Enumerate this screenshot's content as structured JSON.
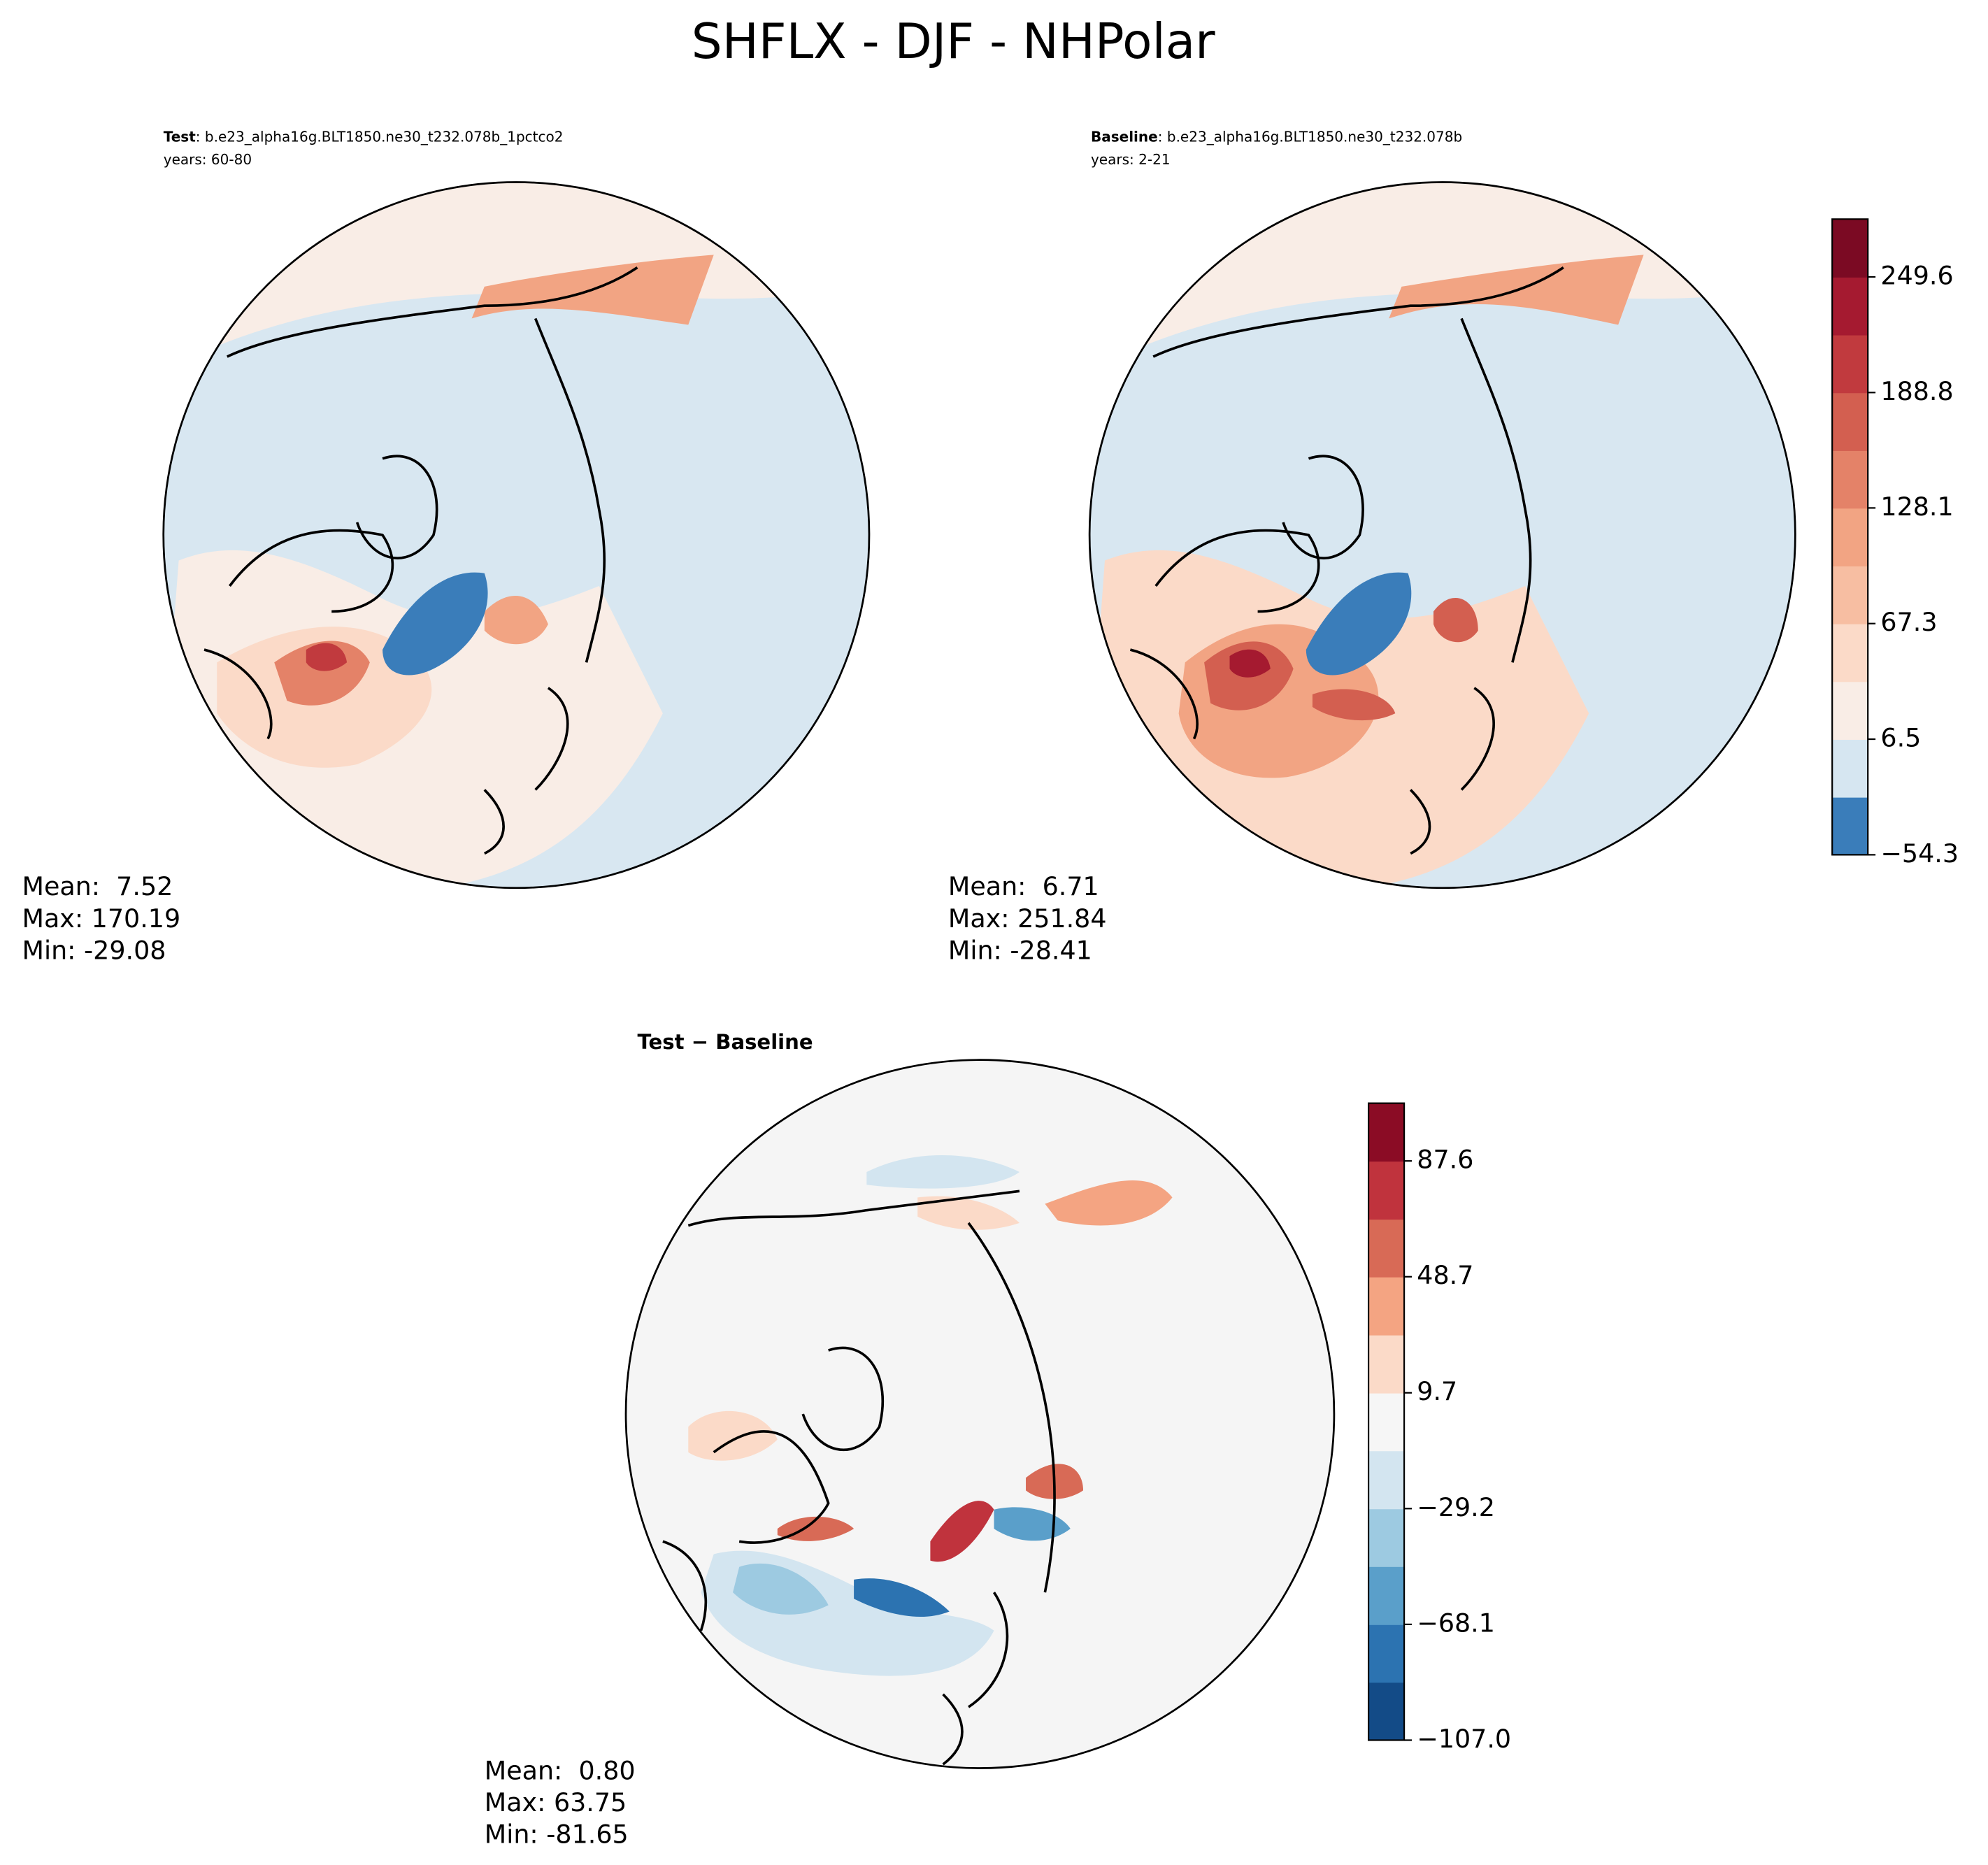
{
  "title": "SHFLX - DJF - NHPolar",
  "chart_data": [
    {
      "type": "contour-map",
      "name": "Test",
      "case": ": b.e23_alpha16g.BLT1850.ne30_t232.078b_1pctco2",
      "years": "years: 60-80",
      "stats": [
        "Mean:  7.52",
        "Max: 170.19",
        "Min: -29.08"
      ]
    },
    {
      "type": "contour-map",
      "name": "Baseline",
      "case": ": b.e23_alpha16g.BLT1850.ne30_t232.078b",
      "years": "years: 2-21",
      "stats": [
        "Mean:  6.71",
        "Max: 251.84",
        "Min: -28.41"
      ],
      "colorbar": {
        "levels": [
          -54.3,
          -23.9,
          6.5,
          36.9,
          67.3,
          97.7,
          128.1,
          158.4,
          188.8,
          219.2,
          249.6,
          280.0
        ],
        "colors": [
          "#3a7dba",
          "#d6e6f1",
          "#f9ede6",
          "#fbdac8",
          "#f7bea2",
          "#f2a483",
          "#e48268",
          "#d35f50",
          "#c13a3e",
          "#a51a30",
          "#7b0a23"
        ],
        "ylim": [
          -54.3,
          280.0
        ],
        "yticks": [
          {
            "value": -54.3,
            "label": "−54.3"
          },
          6.5,
          67.3,
          128.1,
          188.8,
          249.6
        ]
      }
    },
    {
      "type": "contour-map",
      "title": "Test − Baseline",
      "stats": [
        "Mean:  0.80",
        "Max: 63.75",
        "Min: -81.65"
      ],
      "colorbar": {
        "levels": [
          -107.0,
          -87.5,
          -68.1,
          -48.6,
          -29.2,
          -9.7,
          9.7,
          29.2,
          48.7,
          68.1,
          87.6,
          107.0
        ],
        "colors": [
          "#134b87",
          "#2c73b1",
          "#5a9fca",
          "#9dcae1",
          "#d3e5f0",
          "#f6f6f6",
          "#fbdac8",
          "#f4a482",
          "#d86a56",
          "#c0333d",
          "#8b0c25"
        ],
        "ylim": [
          -107.0,
          107.0
        ],
        "yticks": [
          {
            "value": -107.0,
            "label": "−107.0"
          },
          {
            "value": -68.1,
            "label": "−68.1"
          },
          {
            "value": -29.2,
            "label": "−29.2"
          },
          9.7,
          48.7,
          87.6
        ]
      }
    }
  ]
}
